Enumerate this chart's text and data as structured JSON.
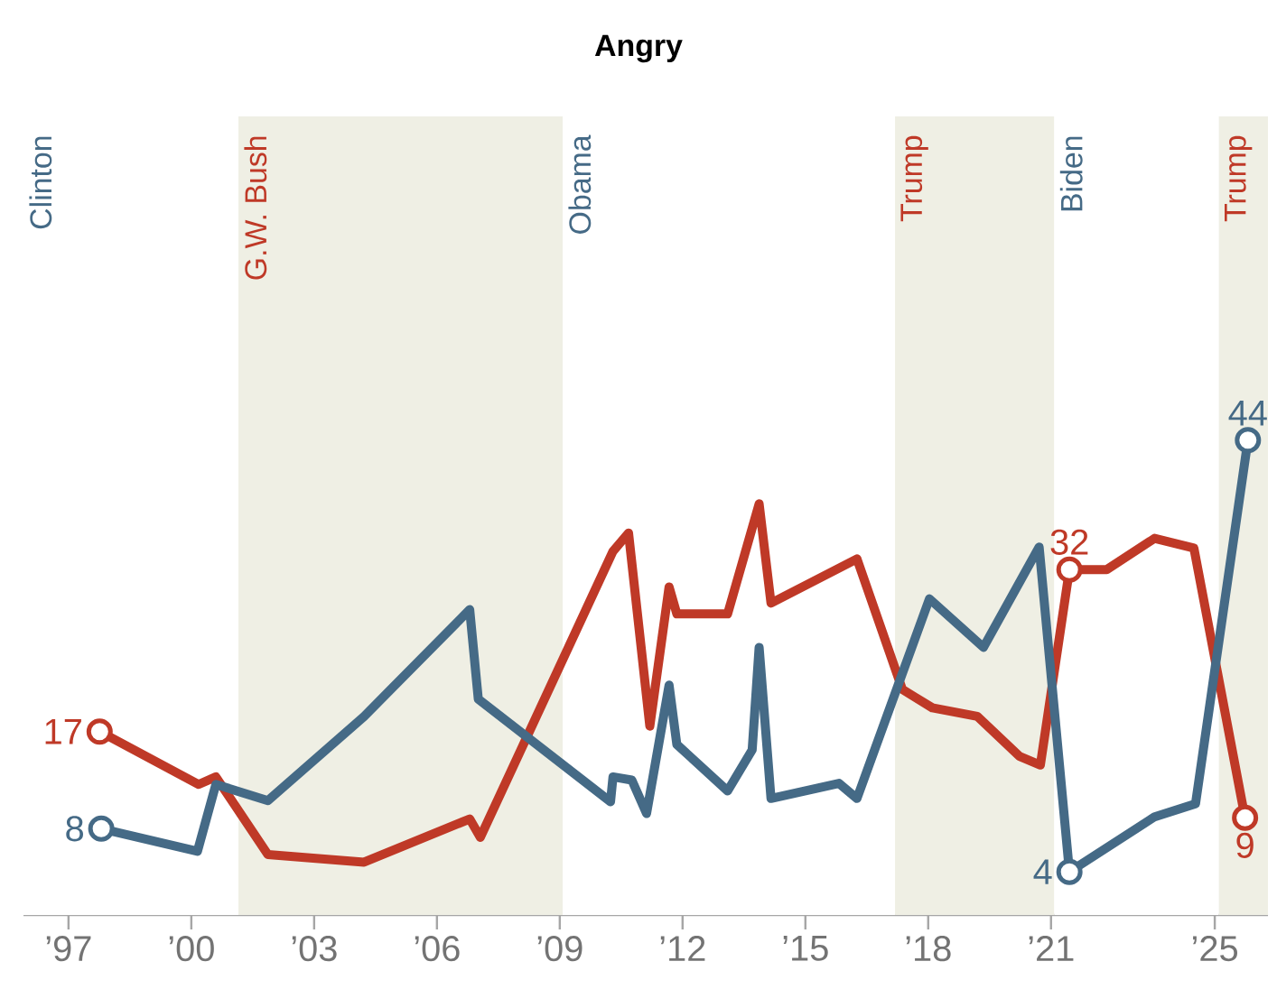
{
  "chart_data": {
    "type": "line",
    "title": "Angry",
    "xlim": [
      1995.9,
      2026.3
    ],
    "tick_labels": "x",
    "xticks": [
      {
        "value": 1997,
        "label": "’97"
      },
      {
        "value": 2000,
        "label": "’00"
      },
      {
        "value": 2003,
        "label": "’03"
      },
      {
        "value": 2006,
        "label": "’06"
      },
      {
        "value": 2009,
        "label": "’09"
      },
      {
        "value": 2012,
        "label": "’12"
      },
      {
        "value": 2015,
        "label": "’15"
      },
      {
        "value": 2018,
        "label": "’18"
      },
      {
        "value": 2021,
        "label": "’21"
      },
      {
        "value": 2025,
        "label": "’25"
      }
    ],
    "bands": [
      {
        "axis": "x",
        "from": 1995.9,
        "to": 2001.15,
        "label": "Clinton",
        "color": "#ffffff"
      },
      {
        "axis": "x",
        "from": 2001.15,
        "to": 2009.07,
        "label": "G.W. Bush",
        "color": "#efefe4"
      },
      {
        "axis": "x",
        "from": 2009.07,
        "to": 2017.19,
        "label": "Obama",
        "color": "#ffffff"
      },
      {
        "axis": "x",
        "from": 2017.19,
        "to": 2021.08,
        "label": "Trump",
        "color": "#efefe4"
      },
      {
        "axis": "x",
        "from": 2021.08,
        "to": 2025.1,
        "label": "Biden",
        "color": "#ffffff"
      },
      {
        "axis": "x",
        "from": 2025.1,
        "to": 2026.3,
        "label": "Trump",
        "color": "#efefe4"
      }
    ],
    "series": [
      {
        "color": "#bf3927",
        "x": [
          1997.76,
          2000.18,
          2000.6,
          2001.87,
          2004.22,
          2006.8,
          2007.06,
          2010.3,
          2010.68,
          2011.2,
          2011.67,
          2011.86,
          2013.1,
          2013.87,
          2014.16,
          2016.26,
          2017.37,
          2018.1,
          2019.2,
          2020.23,
          2020.74,
          2021.45,
          2022.36,
          2023.53,
          2024.49,
          2025.74
        ],
        "values": [
          17,
          12.1,
          12.8,
          5.6,
          4.9,
          8.9,
          7.2,
          33.7,
          35.4,
          17.5,
          30.4,
          27.9,
          27.9,
          38.1,
          28.9,
          33.0,
          20.9,
          19.2,
          18.4,
          14.7,
          13.9,
          32,
          32,
          34.9,
          34.0,
          9
        ],
        "value_labels": [
          "17",
          null,
          null,
          null,
          null,
          null,
          null,
          null,
          null,
          null,
          null,
          null,
          null,
          null,
          null,
          null,
          null,
          null,
          null,
          null,
          null,
          "32",
          null,
          null,
          null,
          "9"
        ]
      },
      {
        "color": "#456a86",
        "x": [
          1997.8,
          2000.15,
          2000.6,
          2001.87,
          2004.22,
          2006.8,
          2007.01,
          2010.24,
          2010.3,
          2010.76,
          2011.12,
          2011.67,
          2011.86,
          2013.1,
          2013.7,
          2013.87,
          2014.16,
          2015.82,
          2016.26,
          2018.03,
          2019.35,
          2020.71,
          2021.45,
          2023.53,
          2024.53,
          2025.81
        ],
        "values": [
          8,
          5.9,
          12.1,
          10.6,
          18.4,
          28.3,
          20.0,
          10.5,
          12.8,
          12.5,
          9.4,
          21.3,
          15.8,
          11.5,
          15.3,
          24.8,
          10.8,
          12.2,
          10.8,
          29.3,
          24.8,
          34.1,
          4,
          9.1,
          10.3,
          44
        ],
        "value_labels": [
          "8",
          null,
          null,
          null,
          null,
          null,
          null,
          null,
          null,
          null,
          null,
          null,
          null,
          null,
          null,
          null,
          null,
          null,
          null,
          null,
          null,
          null,
          "4",
          null,
          null,
          "44"
        ]
      }
    ]
  }
}
